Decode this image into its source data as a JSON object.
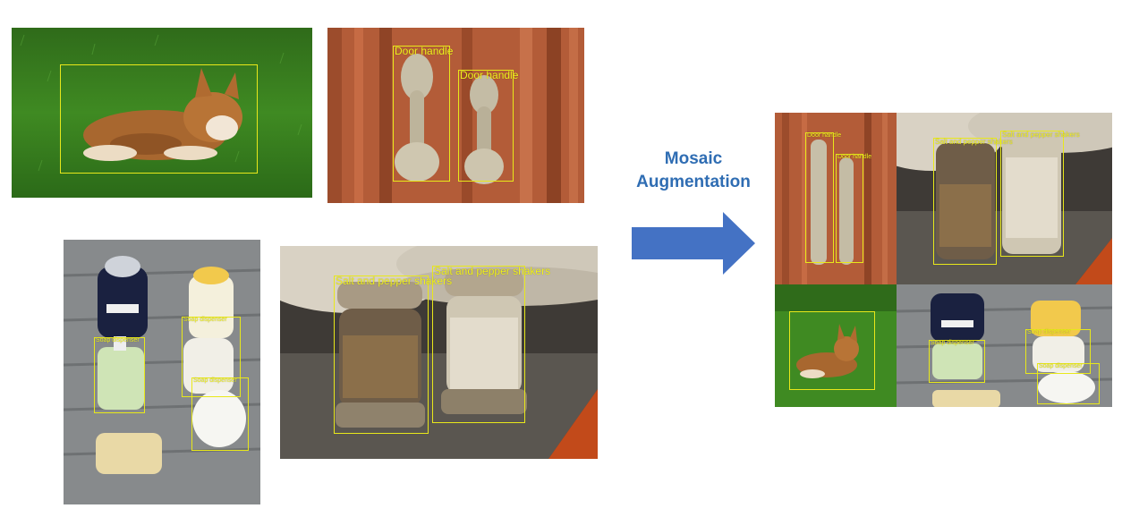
{
  "title_line1": "Mosaic",
  "title_line2": "Augmentation",
  "labels": {
    "door_handle": "Door handle",
    "salt_pepper": "Salt and pepper shakers",
    "soap_dispenser": "Soap dispenser"
  },
  "colors": {
    "bbox": "#e8e81a",
    "arrow": "#4472c4",
    "title": "#2f6db3"
  }
}
